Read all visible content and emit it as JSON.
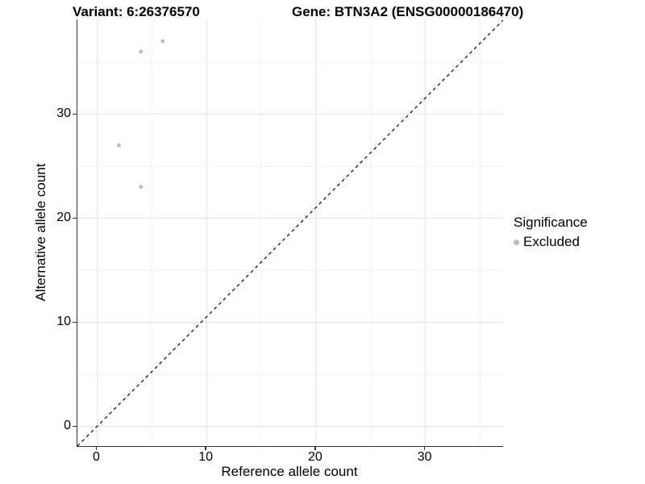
{
  "chart_data": {
    "type": "scatter",
    "title_left": "Variant: 6:26376570",
    "title_right": "Gene: BTN3A2 (ENSG00000186470)",
    "xlabel": "Reference allele count",
    "ylabel": "Alternative allele count",
    "xlim": [
      -1.8,
      37.1
    ],
    "ylim": [
      -1.9,
      39.1
    ],
    "x_ticks": [
      0,
      10,
      20,
      30
    ],
    "y_ticks": [
      0,
      10,
      20,
      30
    ],
    "x_minor_ticks": [
      5,
      15,
      25,
      35
    ],
    "y_minor_ticks": [
      5,
      15,
      25,
      35
    ],
    "grid": "major+minor",
    "grid_major_color": "#e3e3e3",
    "grid_minor_color": "#f0f0f0",
    "axis_line_color": "#333333",
    "reference_line": {
      "type": "identity",
      "style": "dashed",
      "color": "#000000"
    },
    "series": [
      {
        "name": "Excluded",
        "color": "#bebebe",
        "points": [
          {
            "x": 4,
            "y": 36
          },
          {
            "x": 6,
            "y": 37
          },
          {
            "x": 2,
            "y": 27
          },
          {
            "x": 4,
            "y": 23
          }
        ]
      }
    ],
    "legend": {
      "title": "Significance",
      "position": "right",
      "items": [
        {
          "label": "Excluded",
          "color": "#bebebe"
        }
      ]
    }
  }
}
